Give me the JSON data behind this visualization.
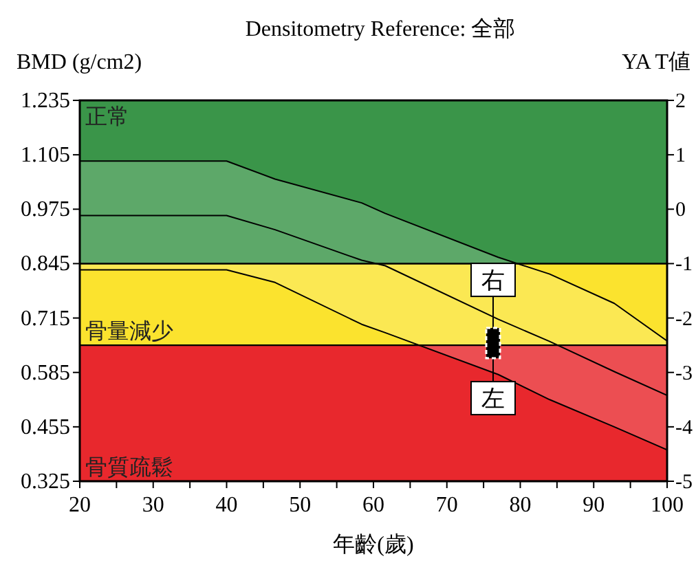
{
  "chart_data": {
    "type": "line",
    "title": "Densitometry Reference: 全部",
    "xlabel": "年齡(歲)",
    "ylabel": "BMD (g/cm2)",
    "y2label": "YA T値",
    "xlim": [
      20,
      100
    ],
    "xticks": [
      20,
      {
        "value": 25,
        "label": null
      },
      30,
      {
        "value": 35,
        "label": null
      },
      40,
      {
        "value": 45,
        "label": null
      },
      50,
      {
        "value": 55,
        "label": null
      },
      60,
      {
        "value": 65,
        "label": null
      },
      70,
      {
        "value": 75,
        "label": null
      },
      80,
      {
        "value": 85,
        "label": null
      },
      90,
      {
        "value": 95,
        "label": null
      },
      100
    ],
    "ylim": [
      0.325,
      1.235
    ],
    "yticks": [
      0.325,
      0.455,
      0.585,
      0.715,
      0.845,
      0.975,
      1.105,
      1.235
    ],
    "y2lim": [
      -5,
      2
    ],
    "y2ticks": [
      -5,
      -4,
      -3,
      -2,
      -1,
      0,
      1,
      2
    ],
    "bands": [
      {
        "axis": "y",
        "from": 0.325,
        "to": 0.65,
        "label": "骨質疏鬆",
        "color": "#e8282d"
      },
      {
        "axis": "y",
        "from": 0.65,
        "to": 0.845,
        "label": "骨量減少",
        "color": "#fbe32e"
      },
      {
        "axis": "y",
        "from": 0.845,
        "to": 1.235,
        "label": "正常",
        "color": "#3a9549"
      }
    ],
    "series": [
      {
        "color": "#000000",
        "marker": "none",
        "line_style": "solid",
        "x": [
          20,
          40,
          46.6,
          58.4,
          61.6,
          77,
          84,
          92.8,
          100
        ],
        "values": [
          0.96,
          0.96,
          0.926,
          0.853,
          0.84,
          0.712,
          0.659,
          0.587,
          0.53
        ],
        "upper": [
          1.09,
          1.09,
          1.047,
          0.99,
          0.965,
          0.86,
          0.82,
          0.75,
          0.66
        ],
        "lower": [
          0.83,
          0.83,
          0.8,
          0.7,
          0.68,
          0.58,
          0.52,
          0.455,
          0.4
        ]
      },
      {
        "color": "#000000",
        "marker": "none",
        "line_style": "solid",
        "x": [
          20,
          40,
          46.6,
          58.4,
          61.6,
          77,
          84,
          92.8,
          100
        ],
        "values": [
          1.09,
          1.09,
          1.047,
          0.99,
          0.965,
          0.86,
          0.82,
          0.75,
          0.66
        ]
      },
      {
        "color": "#000000",
        "marker": "none",
        "line_style": "solid",
        "x": [
          20,
          40,
          46.6,
          58.4,
          61.6,
          77,
          84,
          92.8,
          100
        ],
        "values": [
          0.83,
          0.83,
          0.8,
          0.7,
          0.68,
          0.58,
          0.52,
          0.455,
          0.4
        ]
      },
      {
        "type": "scatter",
        "color": "#000000",
        "marker": "square",
        "x": [
          76.3
        ],
        "values": [
          0.655
        ]
      }
    ],
    "annotations": [
      {
        "text": "右",
        "x": 76.3,
        "y": 0.655
      },
      {
        "text": "左",
        "x": 76.3,
        "y": 0.655
      }
    ]
  }
}
